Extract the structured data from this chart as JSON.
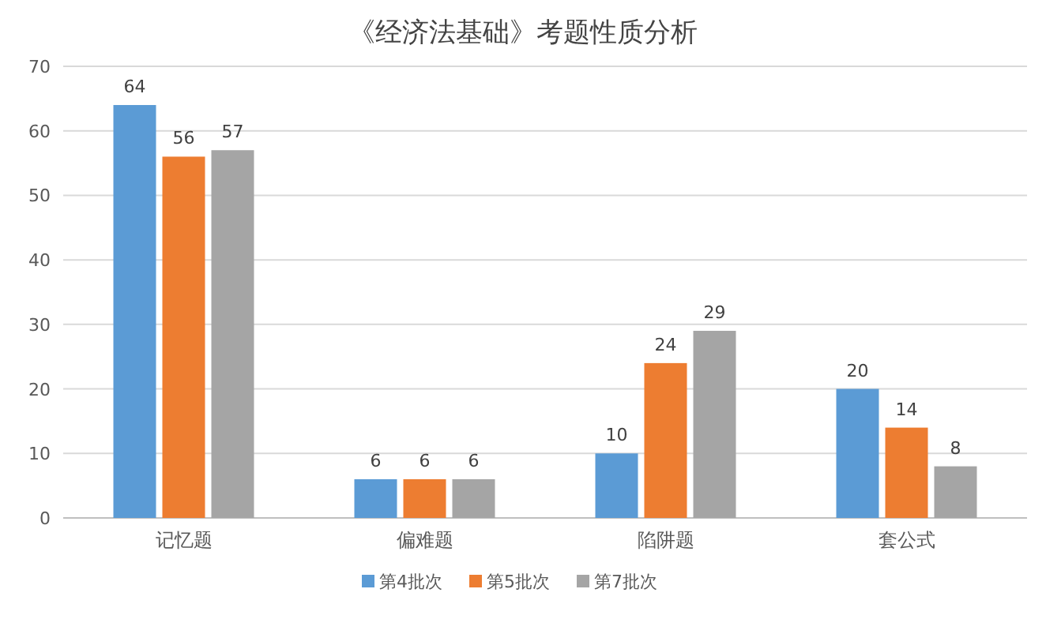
{
  "chart_data": {
    "type": "bar",
    "title": "《经济法基础》考题性质分析",
    "categories": [
      "记忆题",
      "偏难题",
      "陷阱题",
      "套公式"
    ],
    "series": [
      {
        "name": "第4批次",
        "color": "#5b9bd5",
        "values": [
          64,
          6,
          10,
          20
        ]
      },
      {
        "name": "第5批次",
        "color": "#ed7d31",
        "values": [
          56,
          6,
          24,
          14
        ]
      },
      {
        "name": "第7批次",
        "color": "#a5a5a5",
        "values": [
          57,
          6,
          29,
          8
        ]
      }
    ],
    "ylim": [
      0,
      70
    ],
    "yticks": [
      0,
      10,
      20,
      30,
      40,
      50,
      60,
      70
    ],
    "grid": "y",
    "legend": "bottom",
    "data_labels": true
  }
}
